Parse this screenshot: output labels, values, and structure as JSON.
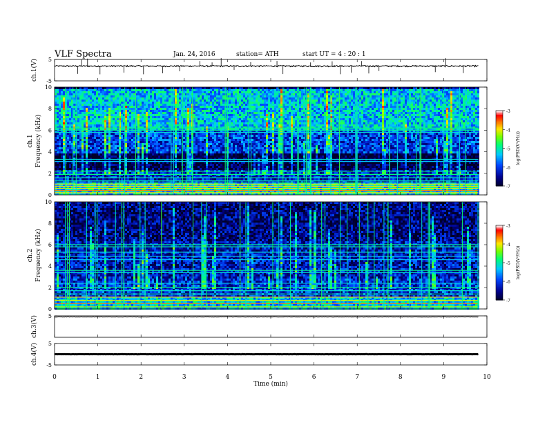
{
  "header": {
    "title": "VLF  Spectra",
    "date": "Jan. 24, 2016",
    "station": "station= ATH",
    "start": "start  UT  =   4  : 20 : 1"
  },
  "chart_data": [
    {
      "type": "line",
      "name": "ch1-waveform",
      "ylabel": "ch.1(V)",
      "ylim": [
        -5,
        5
      ],
      "yticks": [
        -5,
        5
      ],
      "xlim": [
        0,
        10
      ],
      "baseline": 1.9,
      "noise": 0.35,
      "color": "#000000"
    },
    {
      "type": "heatmap",
      "name": "ch1-spectrogram",
      "ylabel_line1": "ch.1",
      "ylabel_line2": "Frequency  (kHz)",
      "ylim": [
        0,
        10
      ],
      "yticks": [
        0,
        2,
        4,
        6,
        8,
        10
      ],
      "xlim": [
        0,
        9.8
      ],
      "colorbar": {
        "label": "log(PSD(V²/Hz))",
        "ticks": [
          -3,
          -4,
          -5,
          -6,
          -7
        ],
        "range": [
          -7,
          -3
        ]
      },
      "bands": [
        {
          "from": 0,
          "to": 1.2,
          "level": -5.2
        },
        {
          "from": 1.2,
          "to": 2.5,
          "level": -6.2
        },
        {
          "from": 2.5,
          "to": 4.0,
          "level": -6.9
        },
        {
          "from": 4.0,
          "to": 6.0,
          "level": -6.0
        },
        {
          "from": 6.0,
          "to": 10,
          "level": -5.3
        }
      ],
      "lines_khz": [
        0.2,
        0.4,
        0.6,
        0.8,
        1.0,
        1.3,
        1.6,
        1.9,
        2.2,
        3.1,
        3.3,
        5.8,
        6.0,
        6.2
      ]
    },
    {
      "type": "heatmap",
      "name": "ch2-spectrogram",
      "ylabel_line1": "ch.2",
      "ylabel_line2": "Frequency  (kHz)",
      "ylim": [
        0,
        10
      ],
      "yticks": [
        0,
        2,
        4,
        6,
        8,
        10
      ],
      "xlim": [
        0,
        9.8
      ],
      "colorbar": {
        "label": "log(PSD(V²/Hz))",
        "ticks": [
          -3,
          -4,
          -5,
          -6,
          -7
        ],
        "range": [
          -7,
          -3
        ]
      },
      "bands": [
        {
          "from": 0,
          "to": 1.2,
          "level": -5.3
        },
        {
          "from": 1.2,
          "to": 3.0,
          "level": -6.1
        },
        {
          "from": 3.0,
          "to": 6.5,
          "level": -6.3
        },
        {
          "from": 6.5,
          "to": 10,
          "level": -6.6
        }
      ],
      "lines_khz": [
        0.2,
        0.5,
        0.8,
        1.1,
        1.4,
        1.7,
        2.0,
        2.4,
        3.4,
        3.6,
        4.6,
        4.9,
        5.3,
        5.8,
        6.0
      ]
    },
    {
      "type": "line",
      "name": "ch3-waveform",
      "ylabel": "ch.3(V)",
      "ylim": [
        -5,
        5
      ],
      "yticks": [
        5
      ],
      "xlim": [
        0,
        10
      ],
      "baseline": 4.5,
      "noise": 0.05,
      "color": "#000000"
    },
    {
      "type": "line",
      "name": "ch4-waveform",
      "ylabel": "ch.4(V)",
      "ylim": [
        -5,
        5
      ],
      "yticks": [
        -5,
        5
      ],
      "xlim": [
        0,
        10
      ],
      "baseline": 0,
      "noise": 0.05,
      "color": "#000000"
    }
  ],
  "xaxis": {
    "label": "Time  (min)",
    "ticks": [
      0,
      1,
      2,
      3,
      4,
      5,
      6,
      7,
      8,
      9,
      10
    ],
    "range": [
      0,
      10
    ]
  }
}
